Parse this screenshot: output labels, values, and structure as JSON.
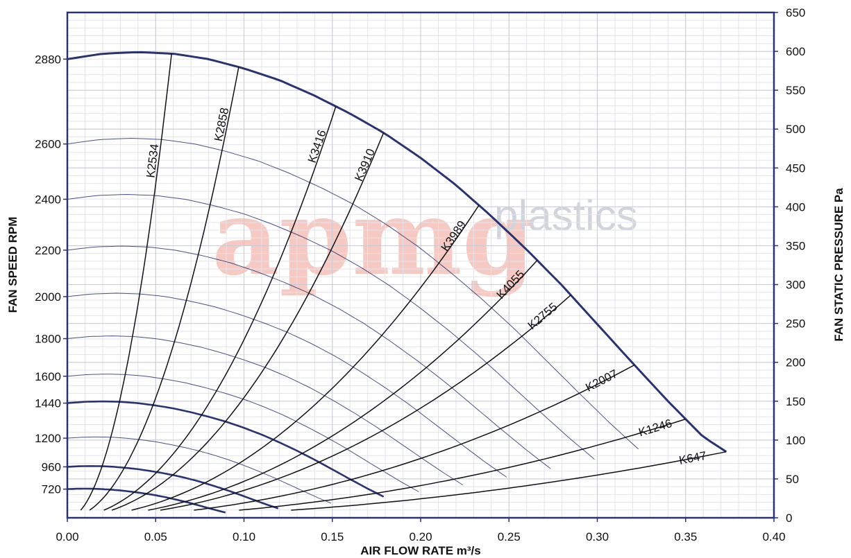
{
  "chart_data": {
    "type": "line",
    "xlabel": "AIR FLOW RATE m³/s",
    "ylabel_left": "FAN SPEED RPM",
    "ylabel_right": "FAN STATIC PRESSURE Pa",
    "xlim": [
      0,
      0.4
    ],
    "ylim": [
      0,
      650
    ],
    "x_ticks": [
      "0.00",
      "0.05",
      "0.10",
      "0.15",
      "0.20",
      "0.25",
      "0.30",
      "0.35",
      "0.40"
    ],
    "y_right_ticks": [
      "0",
      "50",
      "100",
      "150",
      "200",
      "250",
      "300",
      "350",
      "400",
      "450",
      "500",
      "550",
      "600",
      "650"
    ],
    "y_left_ticks": [
      {
        "label": "720",
        "value": 720
      },
      {
        "label": "960",
        "value": 960
      },
      {
        "label": "1200",
        "value": 1200
      },
      {
        "label": "1440",
        "value": 1440
      },
      {
        "label": "1600",
        "value": 1600
      },
      {
        "label": "1800",
        "value": 1800
      },
      {
        "label": "2000",
        "value": 2000
      },
      {
        "label": "2200",
        "value": 2200
      },
      {
        "label": "2400",
        "value": 2400
      },
      {
        "label": "2600",
        "value": 2600
      },
      {
        "label": "2880",
        "value": 2880
      }
    ],
    "grid": true,
    "watermark": [
      "apmg",
      "plastics"
    ],
    "fan_curve_base": {
      "rpm": 2880,
      "x": [
        0,
        0.02,
        0.04,
        0.06,
        0.08,
        0.1,
        0.12,
        0.14,
        0.16,
        0.18,
        0.2,
        0.22,
        0.24,
        0.26,
        0.28,
        0.3,
        0.32,
        0.34,
        0.36,
        0.373
      ],
      "y": [
        590,
        597,
        599,
        597,
        590,
        578,
        563,
        543,
        520,
        494,
        463,
        428,
        388,
        345,
        299,
        249,
        199,
        150,
        104,
        85
      ]
    },
    "fan_speed_curves": [
      {
        "rpm": 2600,
        "emphasis": false
      },
      {
        "rpm": 2400,
        "emphasis": false
      },
      {
        "rpm": 2200,
        "emphasis": false
      },
      {
        "rpm": 2000,
        "emphasis": false
      },
      {
        "rpm": 1800,
        "emphasis": false
      },
      {
        "rpm": 1600,
        "emphasis": false
      },
      {
        "rpm": 1440,
        "emphasis": true
      },
      {
        "rpm": 1200,
        "emphasis": false
      },
      {
        "rpm": 960,
        "emphasis": true
      },
      {
        "rpm": 720,
        "emphasis": true
      }
    ],
    "system_curves": [
      {
        "name": "K2534",
        "x_at_2880": 0.059,
        "label_flow": 0.052
      },
      {
        "name": "K2858",
        "x_at_2880": 0.097,
        "label_flow": 0.091
      },
      {
        "name": "K3416",
        "x_at_2880": 0.152,
        "label_flow": 0.145
      },
      {
        "name": "K3910",
        "x_at_2880": 0.179,
        "label_flow": 0.172
      },
      {
        "name": "K3989",
        "x_at_2880": 0.233,
        "label_flow": 0.222
      },
      {
        "name": "K4055",
        "x_at_2880": 0.266,
        "label_flow": 0.254
      },
      {
        "name": "K2755",
        "x_at_2880": 0.285,
        "label_flow": 0.272
      },
      {
        "name": "K2007",
        "x_at_2880": 0.321,
        "label_flow": 0.305
      },
      {
        "name": "K1246",
        "x_at_2880": 0.35,
        "label_flow": 0.335
      },
      {
        "name": "K647",
        "x_at_2880": 0.373,
        "label_flow": 0.356
      }
    ]
  }
}
